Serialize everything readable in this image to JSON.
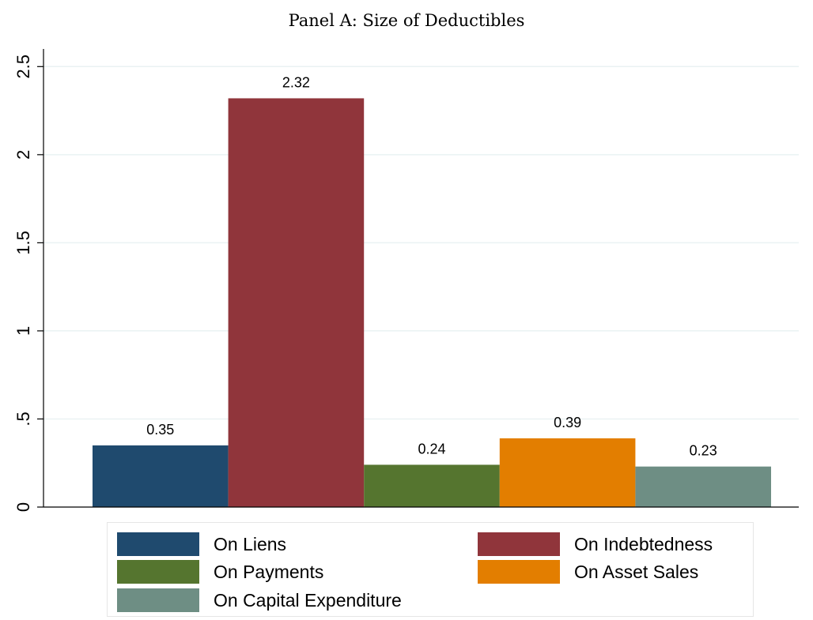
{
  "chart_data": {
    "type": "bar",
    "title": "Panel A: Size of Deductibles",
    "xlabel": "",
    "ylabel": "",
    "ylim": [
      0,
      2.6
    ],
    "yticks": [
      0,
      0.5,
      1,
      1.5,
      2,
      2.5
    ],
    "ytick_labels": [
      "0",
      ".5",
      "1",
      "1.5",
      "2",
      "2.5"
    ],
    "grid": true,
    "legend_position": "bottom",
    "series": [
      {
        "name": "On Liens",
        "value": 0.35,
        "label": "0.35",
        "color": "#1f4a6e"
      },
      {
        "name": "On Indebtedness",
        "value": 2.32,
        "label": "2.32",
        "color": "#90353b"
      },
      {
        "name": "On Payments",
        "value": 0.24,
        "label": "0.24",
        "color": "#55752f"
      },
      {
        "name": "On Asset Sales",
        "value": 0.39,
        "label": "0.39",
        "color": "#e37e00"
      },
      {
        "name": "On Capital Expenditure",
        "value": 0.23,
        "label": "0.23",
        "color": "#6e8e84"
      }
    ]
  }
}
